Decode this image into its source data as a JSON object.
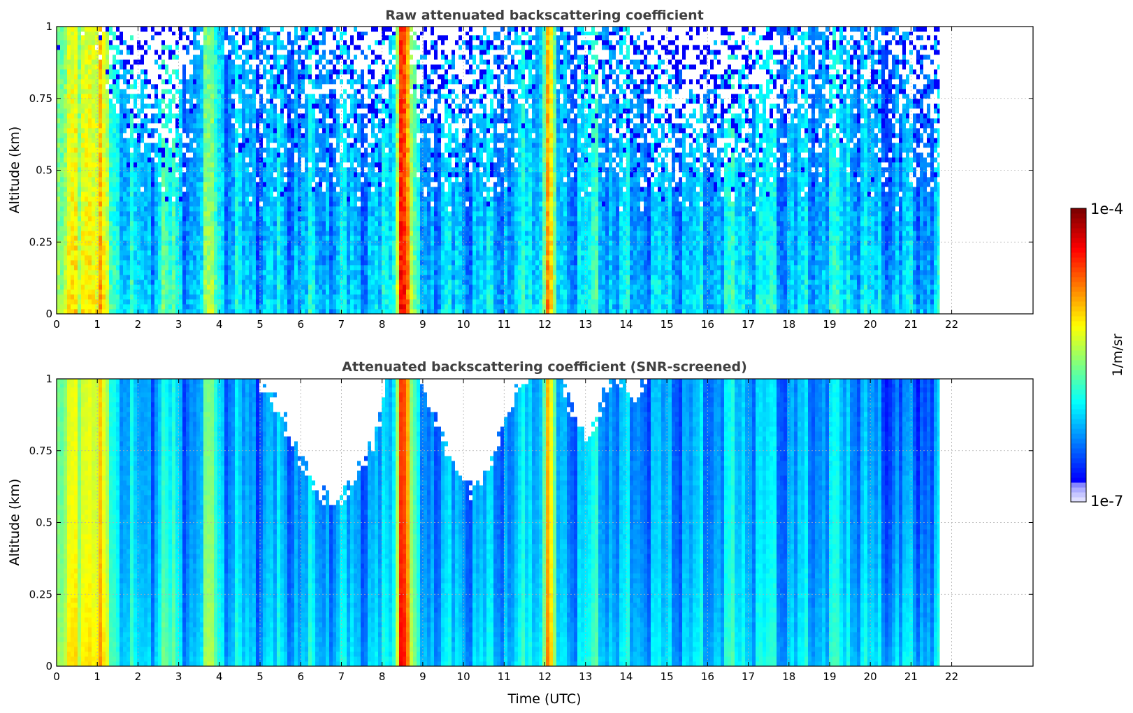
{
  "chart_data": [
    {
      "type": "heatmap",
      "title": "Raw attenuated backscattering coefficient",
      "ylabel": "Altitude (km)",
      "xlabel": "",
      "x_ticks": [
        "0",
        "1",
        "2",
        "3",
        "4",
        "5",
        "6",
        "7",
        "8",
        "9",
        "10",
        "11",
        "12",
        "13",
        "14",
        "15",
        "16",
        "17",
        "18",
        "19",
        "20",
        "21",
        "22"
      ],
      "y_ticks": [
        "0",
        "0.25",
        "0.5",
        "0.75",
        "1"
      ],
      "xlim": [
        0,
        24
      ],
      "ylim": [
        0,
        1
      ],
      "data_end_time": 21.7,
      "grid": true,
      "screened": false,
      "high_signal_bands": [
        {
          "start": 8.3,
          "end": 8.75,
          "level": "high"
        },
        {
          "start": 11.9,
          "end": 12.25,
          "level": "medium-high"
        },
        {
          "start": 3.6,
          "end": 4.05,
          "level": "medium"
        },
        {
          "start": 0.0,
          "end": 1.5,
          "level": "medium"
        }
      ]
    },
    {
      "type": "heatmap",
      "title": "Attenuated backscattering coefficient (SNR-screened)",
      "ylabel": "Altitude (km)",
      "xlabel": "Time (UTC)",
      "x_ticks": [
        "0",
        "1",
        "2",
        "3",
        "4",
        "5",
        "6",
        "7",
        "8",
        "9",
        "10",
        "11",
        "12",
        "13",
        "14",
        "15",
        "16",
        "17",
        "18",
        "19",
        "20",
        "21",
        "22"
      ],
      "y_ticks": [
        "0",
        "0.25",
        "0.5",
        "0.75",
        "1"
      ],
      "xlim": [
        0,
        24
      ],
      "ylim": [
        0,
        1
      ],
      "data_end_time": 21.7,
      "grid": true,
      "screened": true,
      "high_signal_bands": [
        {
          "start": 8.3,
          "end": 8.75,
          "level": "high"
        },
        {
          "start": 11.9,
          "end": 12.25,
          "level": "medium-high"
        },
        {
          "start": 3.6,
          "end": 4.05,
          "level": "medium"
        },
        {
          "start": 0.0,
          "end": 1.5,
          "level": "medium"
        }
      ]
    }
  ],
  "colorbar": {
    "max_label": "1e-4",
    "min_label": "1e-7",
    "unit_label": "1/m/sr",
    "colormap": "jet",
    "scale": "log"
  },
  "colors": {
    "axis": "#000000",
    "grid": "#b0b0b0",
    "title": "#404040"
  }
}
